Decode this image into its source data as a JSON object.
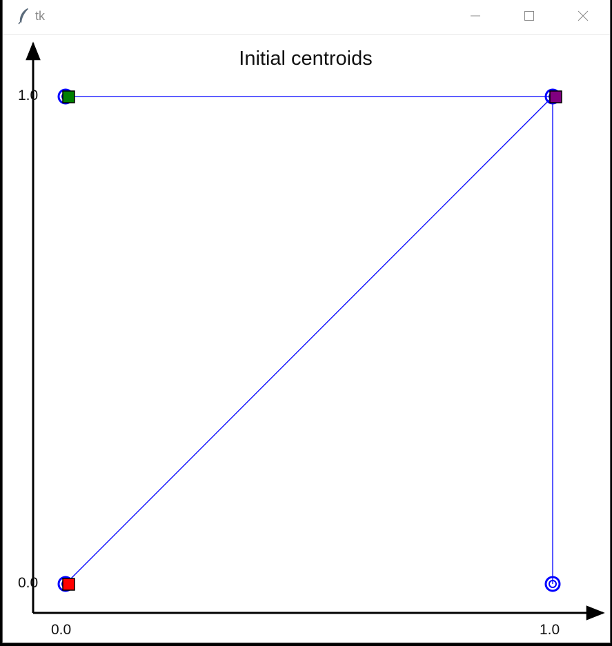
{
  "window": {
    "title": "tk",
    "controls": [
      "minimize",
      "maximize",
      "close"
    ]
  },
  "colors": {
    "point": "#0000ff",
    "edge": "#0000ff",
    "axis": "#000000",
    "centroid_green": "#008000",
    "centroid_purple": "#800080",
    "centroid_red": "#ff0000"
  },
  "chart_data": {
    "type": "scatter",
    "title": "Initial centroids",
    "xlim": [
      0.0,
      1.0
    ],
    "ylim": [
      0.0,
      1.0
    ],
    "x_ticks": [
      "0.0",
      "1.0"
    ],
    "y_ticks": [
      "0.0",
      "1.0"
    ],
    "points": [
      {
        "x": 0.0,
        "y": 1.0
      },
      {
        "x": 1.0,
        "y": 1.0
      },
      {
        "x": 0.0,
        "y": 0.0
      },
      {
        "x": 1.0,
        "y": 0.0
      }
    ],
    "edges": [
      {
        "from": [
          0.0,
          1.0
        ],
        "to": [
          1.0,
          1.0
        ]
      },
      {
        "from": [
          0.0,
          0.0
        ],
        "to": [
          1.0,
          1.0
        ]
      },
      {
        "from": [
          1.0,
          0.0
        ],
        "to": [
          1.0,
          1.0
        ]
      }
    ],
    "centroids": [
      {
        "x": 0.0,
        "y": 1.0,
        "color": "#008000"
      },
      {
        "x": 1.0,
        "y": 1.0,
        "color": "#800080"
      },
      {
        "x": 0.0,
        "y": 0.0,
        "color": "#ff0000"
      }
    ]
  }
}
